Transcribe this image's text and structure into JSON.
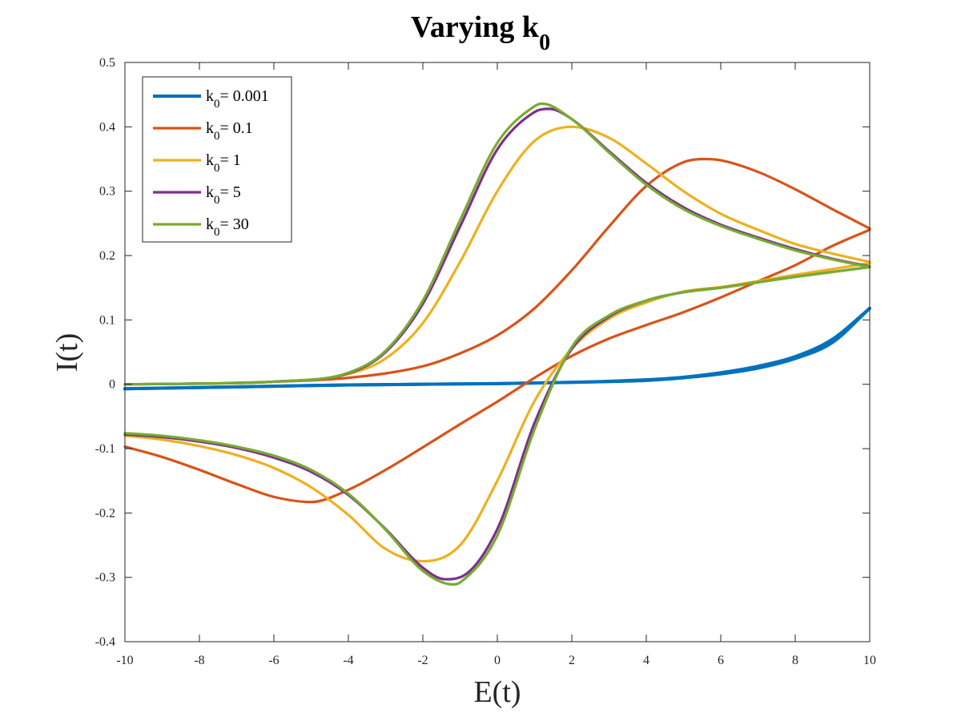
{
  "chart_data": {
    "type": "line",
    "title": "Varying k",
    "title_subscript": "0",
    "xlabel": "E(t)",
    "ylabel": "I(t)",
    "xlim": [
      -10,
      10
    ],
    "ylim": [
      -0.4,
      0.5
    ],
    "xticks": [
      "-10",
      "-8",
      "-6",
      "-4",
      "-2",
      "0",
      "2",
      "4",
      "6",
      "8",
      "10"
    ],
    "yticks": [
      "-0.4",
      "-0.3",
      "-0.2",
      "-0.1",
      "0",
      "0.1",
      "0.2",
      "0.3",
      "0.4",
      "0.5"
    ],
    "grid": false,
    "legend_position": "top-left",
    "series": [
      {
        "name": "k0= 0.001",
        "legend_prefix": "k",
        "legend_sub": "0",
        "legend_value": "= 0.001",
        "color": "#0072BD",
        "forward": [
          [
            -10,
            -0.007
          ],
          [
            -6,
            -0.003
          ],
          [
            -4,
            -0.001
          ],
          [
            0,
            0.001
          ],
          [
            2,
            0.003
          ],
          [
            4,
            0.007
          ],
          [
            5,
            0.011
          ],
          [
            6,
            0.018
          ],
          [
            7,
            0.028
          ],
          [
            8,
            0.043
          ],
          [
            9,
            0.07
          ],
          [
            10,
            0.118
          ]
        ],
        "reverse": [
          [
            10,
            0.118
          ],
          [
            9,
            0.065
          ],
          [
            8,
            0.04
          ],
          [
            7,
            0.025
          ],
          [
            6,
            0.016
          ],
          [
            5,
            0.01
          ],
          [
            4,
            0.006
          ],
          [
            2,
            0.003
          ],
          [
            0,
            0.001
          ],
          [
            -4,
            -0.001
          ],
          [
            -6,
            -0.003
          ],
          [
            -10,
            -0.007
          ]
        ]
      },
      {
        "name": "k0= 0.1",
        "legend_prefix": "k",
        "legend_sub": "0",
        "legend_value": "= 0.1",
        "color": "#D95319",
        "forward": [
          [
            -10,
            0.0
          ],
          [
            -8,
            0.001
          ],
          [
            -6,
            0.004
          ],
          [
            -4,
            0.01
          ],
          [
            -2,
            0.028
          ],
          [
            -1,
            0.048
          ],
          [
            0,
            0.076
          ],
          [
            1,
            0.118
          ],
          [
            2,
            0.177
          ],
          [
            3,
            0.245
          ],
          [
            4,
            0.308
          ],
          [
            5,
            0.345
          ],
          [
            5.6,
            0.35
          ],
          [
            6,
            0.348
          ],
          [
            7,
            0.33
          ],
          [
            8,
            0.303
          ],
          [
            9,
            0.272
          ],
          [
            10,
            0.242
          ]
        ],
        "reverse": [
          [
            10,
            0.24
          ],
          [
            9,
            0.215
          ],
          [
            8,
            0.185
          ],
          [
            7,
            0.16
          ],
          [
            6,
            0.135
          ],
          [
            5,
            0.112
          ],
          [
            4,
            0.092
          ],
          [
            3,
            0.071
          ],
          [
            2,
            0.044
          ],
          [
            1,
            0.01
          ],
          [
            0,
            -0.027
          ],
          [
            -1,
            -0.062
          ],
          [
            -2,
            -0.098
          ],
          [
            -3,
            -0.133
          ],
          [
            -4,
            -0.164
          ],
          [
            -5,
            -0.183
          ],
          [
            -6,
            -0.175
          ],
          [
            -7,
            -0.155
          ],
          [
            -8,
            -0.133
          ],
          [
            -9,
            -0.113
          ],
          [
            -10,
            -0.097
          ]
        ]
      },
      {
        "name": "k0= 1",
        "legend_prefix": "k",
        "legend_sub": "0",
        "legend_value": "= 1",
        "color": "#EDB120",
        "forward": [
          [
            -10,
            0.0
          ],
          [
            -8,
            0.001
          ],
          [
            -6,
            0.004
          ],
          [
            -4,
            0.016
          ],
          [
            -3,
            0.04
          ],
          [
            -2,
            0.095
          ],
          [
            -1,
            0.19
          ],
          [
            0,
            0.3
          ],
          [
            1,
            0.378
          ],
          [
            2,
            0.4
          ],
          [
            3,
            0.383
          ],
          [
            4,
            0.343
          ],
          [
            5,
            0.3
          ],
          [
            6,
            0.265
          ],
          [
            7,
            0.24
          ],
          [
            8,
            0.218
          ],
          [
            9,
            0.203
          ],
          [
            10,
            0.19
          ]
        ],
        "reverse": [
          [
            10,
            0.188
          ],
          [
            8,
            0.17
          ],
          [
            6,
            0.151
          ],
          [
            5,
            0.144
          ],
          [
            4,
            0.127
          ],
          [
            3,
            0.102
          ],
          [
            2,
            0.055
          ],
          [
            1,
            -0.026
          ],
          [
            0,
            -0.15
          ],
          [
            -1,
            -0.25
          ],
          [
            -2,
            -0.275
          ],
          [
            -3,
            -0.256
          ],
          [
            -4,
            -0.203
          ],
          [
            -5,
            -0.16
          ],
          [
            -6,
            -0.13
          ],
          [
            -7,
            -0.11
          ],
          [
            -8,
            -0.096
          ],
          [
            -9,
            -0.086
          ],
          [
            -10,
            -0.08
          ]
        ]
      },
      {
        "name": "k0= 5",
        "legend_prefix": "k",
        "legend_sub": "0",
        "legend_value": "= 5",
        "color": "#7E2F8E",
        "forward": [
          [
            -10,
            0.0
          ],
          [
            -8,
            0.001
          ],
          [
            -6,
            0.004
          ],
          [
            -4,
            0.017
          ],
          [
            -3,
            0.05
          ],
          [
            -2,
            0.125
          ],
          [
            -1,
            0.245
          ],
          [
            0,
            0.365
          ],
          [
            1,
            0.423
          ],
          [
            1.4,
            0.428
          ],
          [
            2,
            0.412
          ],
          [
            3,
            0.362
          ],
          [
            4,
            0.313
          ],
          [
            5,
            0.275
          ],
          [
            6,
            0.248
          ],
          [
            7,
            0.228
          ],
          [
            8,
            0.21
          ],
          [
            9,
            0.195
          ],
          [
            10,
            0.183
          ]
        ],
        "reverse": [
          [
            10,
            0.182
          ],
          [
            8,
            0.167
          ],
          [
            6,
            0.15
          ],
          [
            5,
            0.143
          ],
          [
            4,
            0.13
          ],
          [
            3,
            0.105
          ],
          [
            2,
            0.055
          ],
          [
            1,
            -0.06
          ],
          [
            0,
            -0.225
          ],
          [
            -1,
            -0.3
          ],
          [
            -1.4,
            -0.303
          ],
          [
            -2,
            -0.285
          ],
          [
            -3,
            -0.225
          ],
          [
            -4,
            -0.172
          ],
          [
            -5,
            -0.136
          ],
          [
            -6,
            -0.114
          ],
          [
            -7,
            -0.099
          ],
          [
            -8,
            -0.089
          ],
          [
            -9,
            -0.082
          ],
          [
            -10,
            -0.078
          ]
        ]
      },
      {
        "name": "k0= 30",
        "legend_prefix": "k",
        "legend_sub": "0",
        "legend_value": "= 30",
        "color": "#77AC30",
        "forward": [
          [
            -10,
            0.0
          ],
          [
            -8,
            0.001
          ],
          [
            -6,
            0.004
          ],
          [
            -4,
            0.018
          ],
          [
            -3,
            0.052
          ],
          [
            -2,
            0.13
          ],
          [
            -1,
            0.255
          ],
          [
            0,
            0.375
          ],
          [
            1,
            0.432
          ],
          [
            1.2,
            0.436
          ],
          [
            2,
            0.412
          ],
          [
            3,
            0.36
          ],
          [
            4,
            0.31
          ],
          [
            5,
            0.272
          ],
          [
            6,
            0.246
          ],
          [
            7,
            0.226
          ],
          [
            8,
            0.208
          ],
          [
            9,
            0.194
          ],
          [
            10,
            0.182
          ]
        ],
        "reverse": [
          [
            10,
            0.182
          ],
          [
            8,
            0.167
          ],
          [
            6,
            0.15
          ],
          [
            5,
            0.143
          ],
          [
            4,
            0.13
          ],
          [
            3,
            0.107
          ],
          [
            2,
            0.058
          ],
          [
            1,
            -0.07
          ],
          [
            0,
            -0.235
          ],
          [
            -1,
            -0.308
          ],
          [
            -1.2,
            -0.311
          ],
          [
            -2,
            -0.29
          ],
          [
            -3,
            -0.226
          ],
          [
            -4,
            -0.17
          ],
          [
            -5,
            -0.133
          ],
          [
            -6,
            -0.111
          ],
          [
            -7,
            -0.097
          ],
          [
            -8,
            -0.087
          ],
          [
            -9,
            -0.08
          ],
          [
            -10,
            -0.076
          ]
        ]
      }
    ]
  }
}
